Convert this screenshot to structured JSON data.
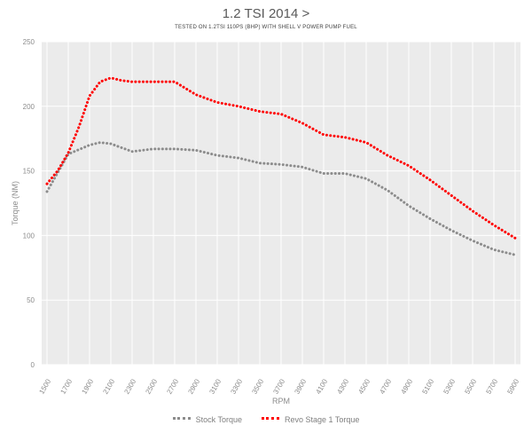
{
  "chart_data": {
    "type": "line",
    "title": "1.2 TSI 2014 >",
    "subtitle": "TESTED ON 1.2TSI 110PS (BHP) WITH SHELL V POWER PUMP FUEL",
    "xlabel": "RPM",
    "ylabel": "Torque (NM)",
    "ylim": [
      0,
      250
    ],
    "yticks": [
      0,
      50,
      100,
      150,
      200,
      250
    ],
    "xlim": [
      1500,
      5900
    ],
    "x_tick_labels": [
      "1500",
      "1700",
      "1900",
      "2100",
      "2300",
      "2500",
      "2700",
      "2900",
      "3100",
      "3300",
      "3500",
      "3700",
      "3900",
      "4100",
      "4300",
      "4500",
      "4700",
      "4900",
      "5100",
      "5300",
      "5500",
      "5700",
      "5900"
    ],
    "grid": true,
    "legend": "bottom",
    "series": [
      {
        "name": "Stock Torque",
        "color": "#8c8c8c",
        "x": [
          1500,
          1700,
          1900,
          2000,
          2100,
          2300,
          2500,
          2700,
          2900,
          3100,
          3300,
          3500,
          3700,
          3900,
          4100,
          4300,
          4500,
          4700,
          4900,
          5100,
          5300,
          5500,
          5700,
          5900
        ],
        "values": [
          134,
          163,
          170,
          172,
          171,
          165,
          167,
          167,
          166,
          162,
          160,
          156,
          155,
          153,
          148,
          148,
          144,
          135,
          123,
          113,
          104,
          96,
          89,
          85
        ]
      },
      {
        "name": "Revo Stage 1 Torque",
        "color": "#ff0000",
        "x": [
          1500,
          1600,
          1700,
          1800,
          1900,
          2000,
          2100,
          2200,
          2300,
          2500,
          2700,
          2900,
          3100,
          3300,
          3500,
          3700,
          3900,
          4100,
          4300,
          4500,
          4700,
          4900,
          5100,
          5300,
          5500,
          5700,
          5900
        ],
        "values": [
          140,
          150,
          164,
          184,
          208,
          219,
          222,
          220,
          219,
          219,
          219,
          209,
          203,
          200,
          196,
          194,
          187,
          178,
          176,
          172,
          162,
          154,
          143,
          131,
          119,
          108,
          98
        ]
      }
    ]
  }
}
